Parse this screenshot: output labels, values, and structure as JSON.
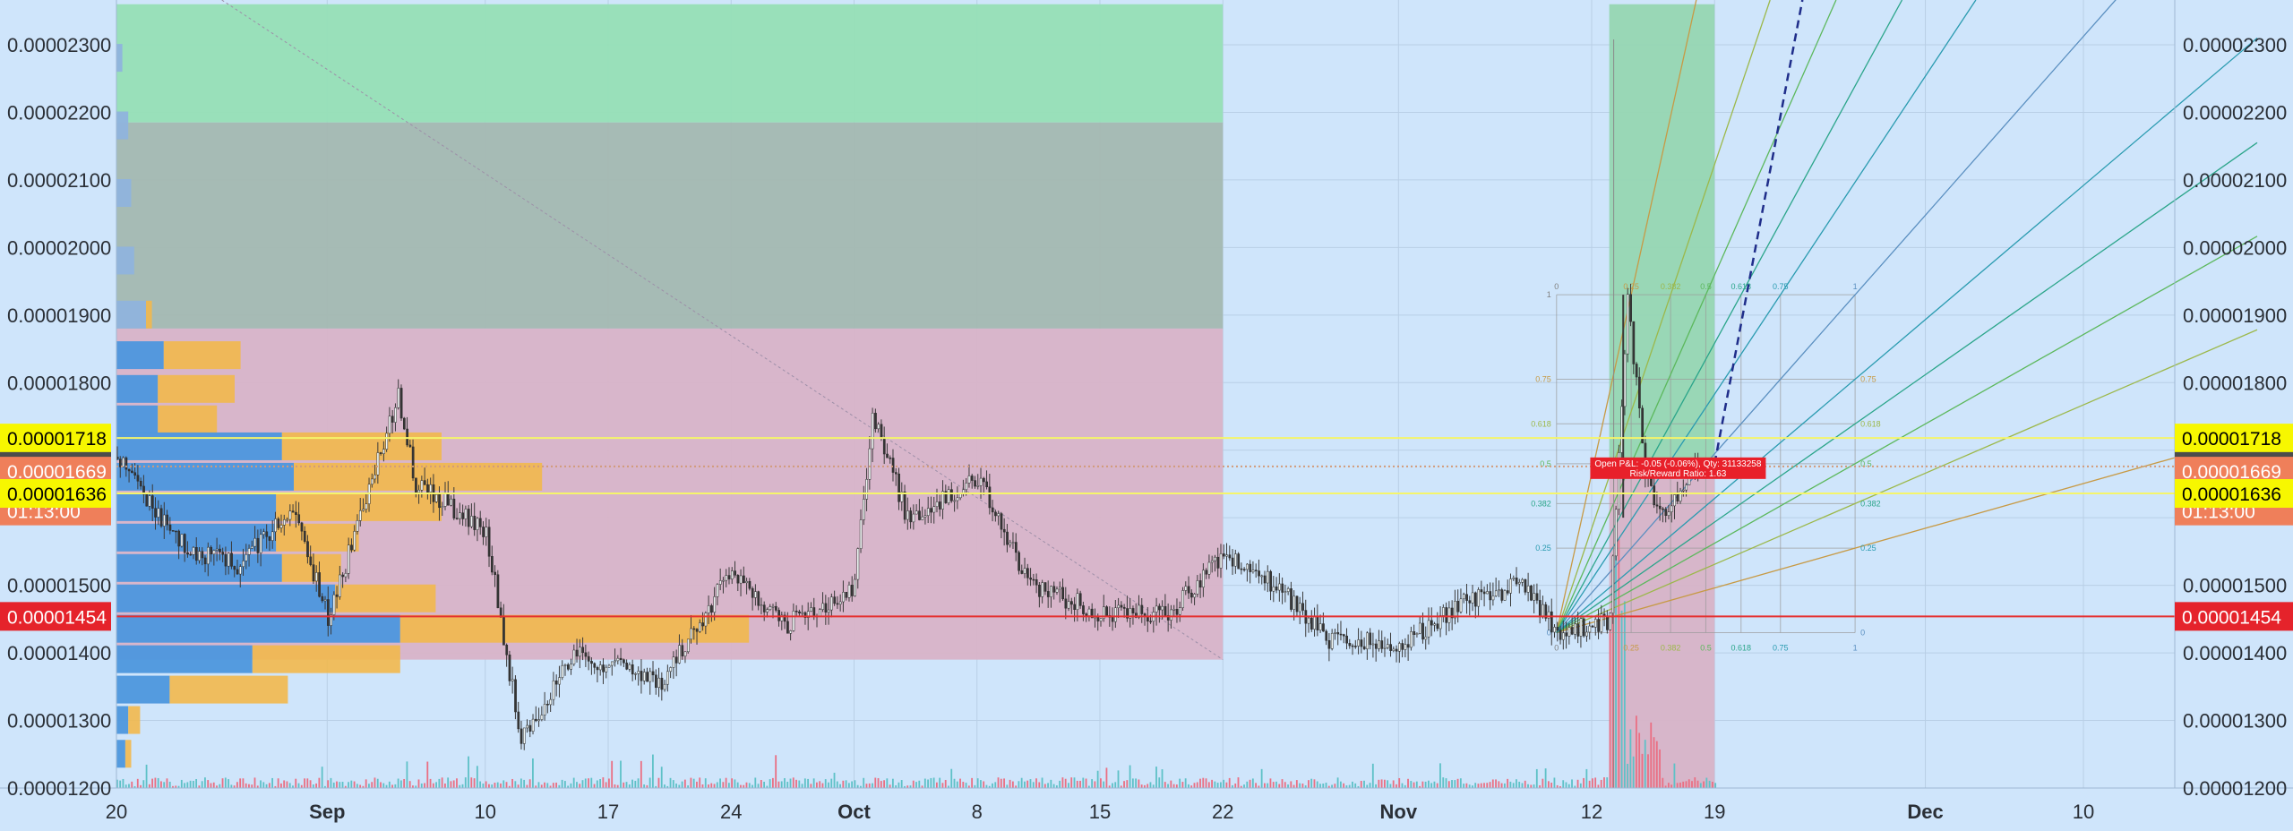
{
  "chart_data": {
    "type": "candlestick",
    "y_axis": {
      "ticks": [
        "0.00002300",
        "0.00002200",
        "0.00002100",
        "0.00002000",
        "0.00001900",
        "0.00001800",
        "0.00001700",
        "0.00001600",
        "0.00001500",
        "0.00001400",
        "0.00001300",
        "0.00001200"
      ],
      "tick_values": [
        2.3e-05,
        2.2e-05,
        2.1e-05,
        2e-05,
        1.9e-05,
        1.8e-05,
        1.7e-05,
        1.6e-05,
        1.5e-05,
        1.4e-05,
        1.3e-05,
        1.2e-05
      ],
      "range": [
        1.19e-05,
        2.36e-05
      ],
      "both_sides": true
    },
    "x_axis": {
      "ticks": [
        {
          "label": "20",
          "date": "2018-08-20",
          "bold": false
        },
        {
          "label": "Sep",
          "date": "2018-09-01",
          "bold": true
        },
        {
          "label": "10",
          "date": "2018-09-10",
          "bold": false
        },
        {
          "label": "17",
          "date": "2018-09-17",
          "bold": false
        },
        {
          "label": "24",
          "date": "2018-09-24",
          "bold": false
        },
        {
          "label": "Oct",
          "date": "2018-10-01",
          "bold": true
        },
        {
          "label": "8",
          "date": "2018-10-08",
          "bold": false
        },
        {
          "label": "15",
          "date": "2018-10-15",
          "bold": false
        },
        {
          "label": "22",
          "date": "2018-10-22",
          "bold": false
        },
        {
          "label": "Nov",
          "date": "2018-11-01",
          "bold": true
        },
        {
          "label": "12",
          "date": "2018-11-12",
          "bold": false
        },
        {
          "label": "19",
          "date": "2018-11-19",
          "bold": false
        },
        {
          "label": "Dec",
          "date": "2018-12-01",
          "bold": true
        },
        {
          "label": "10",
          "date": "2018-12-10",
          "bold": false
        }
      ]
    },
    "grid": true,
    "price_path": [
      {
        "date": "2018-08-20",
        "price": 1.69e-05
      },
      {
        "date": "2018-08-24",
        "price": 1.55e-05
      },
      {
        "date": "2018-08-27",
        "price": 1.53e-05
      },
      {
        "date": "2018-08-30",
        "price": 1.62e-05
      },
      {
        "date": "2018-09-01",
        "price": 1.45e-05
      },
      {
        "date": "2018-09-05",
        "price": 1.78e-05
      },
      {
        "date": "2018-09-06",
        "price": 1.65e-05
      },
      {
        "date": "2018-09-10",
        "price": 1.58e-05
      },
      {
        "date": "2018-09-12",
        "price": 1.27e-05
      },
      {
        "date": "2018-09-15",
        "price": 1.4e-05
      },
      {
        "date": "2018-09-20",
        "price": 1.36e-05
      },
      {
        "date": "2018-09-24",
        "price": 1.52e-05
      },
      {
        "date": "2018-09-27",
        "price": 1.44e-05
      },
      {
        "date": "2018-10-01",
        "price": 1.5e-05
      },
      {
        "date": "2018-10-02",
        "price": 1.75e-05
      },
      {
        "date": "2018-10-04",
        "price": 1.6e-05
      },
      {
        "date": "2018-10-08",
        "price": 1.66e-05
      },
      {
        "date": "2018-10-11",
        "price": 1.5e-05
      },
      {
        "date": "2018-10-15",
        "price": 1.46e-05
      },
      {
        "date": "2018-10-19",
        "price": 1.46e-05
      },
      {
        "date": "2018-10-22",
        "price": 1.55e-05
      },
      {
        "date": "2018-10-25",
        "price": 1.5e-05
      },
      {
        "date": "2018-10-28",
        "price": 1.42e-05
      },
      {
        "date": "2018-11-01",
        "price": 1.41e-05
      },
      {
        "date": "2018-11-05",
        "price": 1.48e-05
      },
      {
        "date": "2018-11-08",
        "price": 1.5e-05
      },
      {
        "date": "2018-11-10",
        "price": 1.43e-05
      },
      {
        "date": "2018-11-13",
        "price": 1.45e-05
      },
      {
        "date": "2018-11-14",
        "price": 1.93e-05
      },
      {
        "date": "2018-11-15",
        "price": 1.66e-05
      },
      {
        "date": "2018-11-16",
        "price": 1.6e-05
      },
      {
        "date": "2018-11-18",
        "price": 1.68e-05
      }
    ],
    "horizontal_lines": [
      {
        "price": 1.718e-05,
        "color": "#f5f56a"
      },
      {
        "price": 1.676e-05,
        "color": "#d29a7a",
        "style": "dotted"
      },
      {
        "price": 1.636e-05,
        "color": "#f5f56a"
      },
      {
        "price": 1.454e-05,
        "color": "#e53030"
      }
    ],
    "price_badges": [
      {
        "label": "0.00001718",
        "price": 1.718e-05,
        "bg": "#f7f700",
        "fg": "#000000"
      },
      {
        "label": "0.00001676",
        "price": 1.676e-05,
        "bg": "#4c4c4c",
        "fg": "#ffffff"
      },
      {
        "label": "0.00001669",
        "price": 1.669e-05,
        "bg": "#ef7f5a",
        "fg": "#ffffff"
      },
      {
        "label": "01:13:00",
        "price": 1.61e-05,
        "bg": "#ef7f5a",
        "fg": "#ffffff"
      },
      {
        "label": "0.00001636",
        "price": 1.636e-05,
        "bg": "#f7f700",
        "fg": "#000000"
      },
      {
        "label": "0.00001454",
        "price": 1.454e-05,
        "bg": "#e5232b",
        "fg": "#ffffff"
      }
    ],
    "zones": [
      {
        "kind": "profit",
        "from": "2018-08-20",
        "to": "2018-10-22",
        "price_top": 2.36e-05,
        "price_bottom": 2.185e-05,
        "color": "#96dfb6"
      },
      {
        "kind": "profit-dim",
        "from": "2018-08-20",
        "to": "2018-10-22",
        "price_top": 2.185e-05,
        "price_bottom": 1.88e-05,
        "color": "#a3b8b1"
      },
      {
        "kind": "loss",
        "from": "2018-08-20",
        "to": "2018-10-22",
        "price_top": 1.88e-05,
        "price_bottom": 1.39e-05,
        "color": "#d8b3c8"
      },
      {
        "kind": "profit",
        "from": "2018-11-13",
        "to": "2018-11-19",
        "price_top": 2.36e-05,
        "price_bottom": 1.67e-05,
        "color": "#96d6b2"
      },
      {
        "kind": "loss",
        "from": "2018-11-13",
        "to": "2018-11-19",
        "price_top": 1.67e-05,
        "price_bottom": 1.19e-05,
        "color": "#d7b3c7"
      }
    ],
    "volume_profile": {
      "rows": [
        {
          "price": 2.28e-05,
          "left": 0.1,
          "right": 0.0
        },
        {
          "price": 2.18e-05,
          "left": 0.2,
          "right": 0.0
        },
        {
          "price": 2.08e-05,
          "left": 0.25,
          "right": 0.0
        },
        {
          "price": 1.98e-05,
          "left": 0.3,
          "right": 0.0
        },
        {
          "price": 1.9e-05,
          "left": 0.5,
          "right": 0.1
        },
        {
          "price": 1.84e-05,
          "left": 0.8,
          "right": 1.3
        },
        {
          "price": 1.79e-05,
          "left": 0.7,
          "right": 1.3
        },
        {
          "price": 1.745e-05,
          "left": 0.7,
          "right": 1.0
        },
        {
          "price": 1.705e-05,
          "left": 2.8,
          "right": 2.7
        },
        {
          "price": 1.66e-05,
          "left": 3.0,
          "right": 4.2
        },
        {
          "price": 1.615e-05,
          "left": 2.7,
          "right": 2.8
        },
        {
          "price": 1.57e-05,
          "left": 2.7,
          "right": 1.4
        },
        {
          "price": 1.525e-05,
          "left": 2.8,
          "right": 1.0
        },
        {
          "price": 1.48e-05,
          "left": 3.7,
          "right": 1.7
        },
        {
          "price": 1.435e-05,
          "left": 4.8,
          "right": 5.9
        },
        {
          "price": 1.39e-05,
          "left": 2.3,
          "right": 2.5
        },
        {
          "price": 1.345e-05,
          "left": 0.9,
          "right": 2.0
        },
        {
          "price": 1.3e-05,
          "left": 0.2,
          "right": 0.2
        },
        {
          "price": 1.25e-05,
          "left": 0.15,
          "right": 0.1
        }
      ]
    },
    "fib_fan": {
      "origin": {
        "date": "2018-11-10",
        "price": 1.43e-05
      },
      "box_top": {
        "date": "2018-11-27",
        "price": 1.93e-05
      },
      "h_levels": [
        "0",
        "0.25",
        "0.382",
        "0.5",
        "0.618",
        "0.75",
        "1"
      ],
      "v_levels": [
        "0",
        "0.25",
        "0.382",
        "0.5",
        "0.618",
        "0.75",
        "1"
      ],
      "left_levels": [
        "0.75",
        "0.618",
        "0.5",
        "0.382",
        "0.25",
        "0"
      ],
      "left_levels_at": [
        0.75,
        0.618,
        0.5,
        0.382,
        0.25,
        0
      ]
    },
    "projection": {
      "from": {
        "date": "2018-11-19",
        "price": 1.68e-05
      },
      "to": {
        "date": "2018-11-24",
        "price": 2.36e-05
      },
      "color": "#1f2d8a"
    },
    "position_label": {
      "line1": "Open P&L: -0.05 (-0.06%), Qty: 31133258",
      "line2": "Risk/Reward Ratio: 1.63",
      "date": "2018-11-16",
      "price": 1.676e-05
    }
  }
}
